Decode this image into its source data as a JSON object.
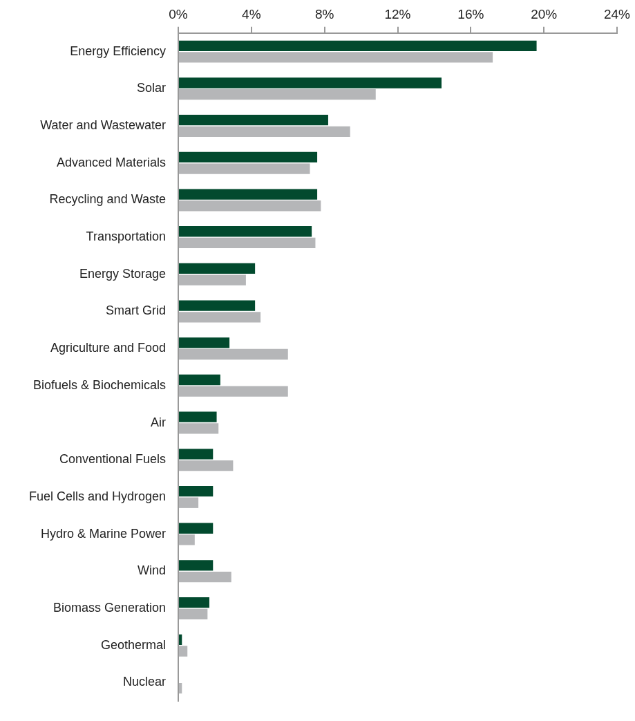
{
  "chart_data": {
    "type": "bar",
    "orientation": "horizontal",
    "categories": [
      "Energy Efficiency",
      "Solar",
      "Water and Wastewater",
      "Advanced Materials",
      "Recycling and Waste",
      "Transportation",
      "Energy Storage",
      "Smart Grid",
      "Agriculture and Food",
      "Biofuels & Biochemicals",
      "Air",
      "Conventional Fuels",
      "Fuel Cells and Hydrogen",
      "Hydro & Marine Power",
      "Wind",
      "Biomass Generation",
      "Geothermal",
      "Nuclear"
    ],
    "series": [
      {
        "color": "#024a2e",
        "values": [
          19.6,
          14.4,
          8.2,
          7.6,
          7.6,
          7.3,
          4.2,
          4.2,
          2.8,
          2.3,
          2.1,
          1.9,
          1.9,
          1.9,
          1.9,
          1.7,
          0.2,
          0
        ]
      },
      {
        "color": "#b5b6b8",
        "values": [
          17.2,
          10.8,
          9.4,
          7.2,
          7.8,
          7.5,
          3.7,
          4.5,
          6.0,
          6.0,
          2.2,
          3.0,
          1.1,
          0.9,
          2.9,
          1.6,
          0.5,
          0.2
        ]
      }
    ],
    "xlim": [
      0,
      24
    ],
    "xticks": [
      {
        "value": 0,
        "label": "0%"
      },
      {
        "value": 4,
        "label": "4%"
      },
      {
        "value": 8,
        "label": "8%"
      },
      {
        "value": 12,
        "label": "12%"
      },
      {
        "value": 16,
        "label": "16%"
      },
      {
        "value": 20,
        "label": "20%"
      },
      {
        "value": 24,
        "label": "24%"
      }
    ],
    "grid": false,
    "legend": false
  }
}
